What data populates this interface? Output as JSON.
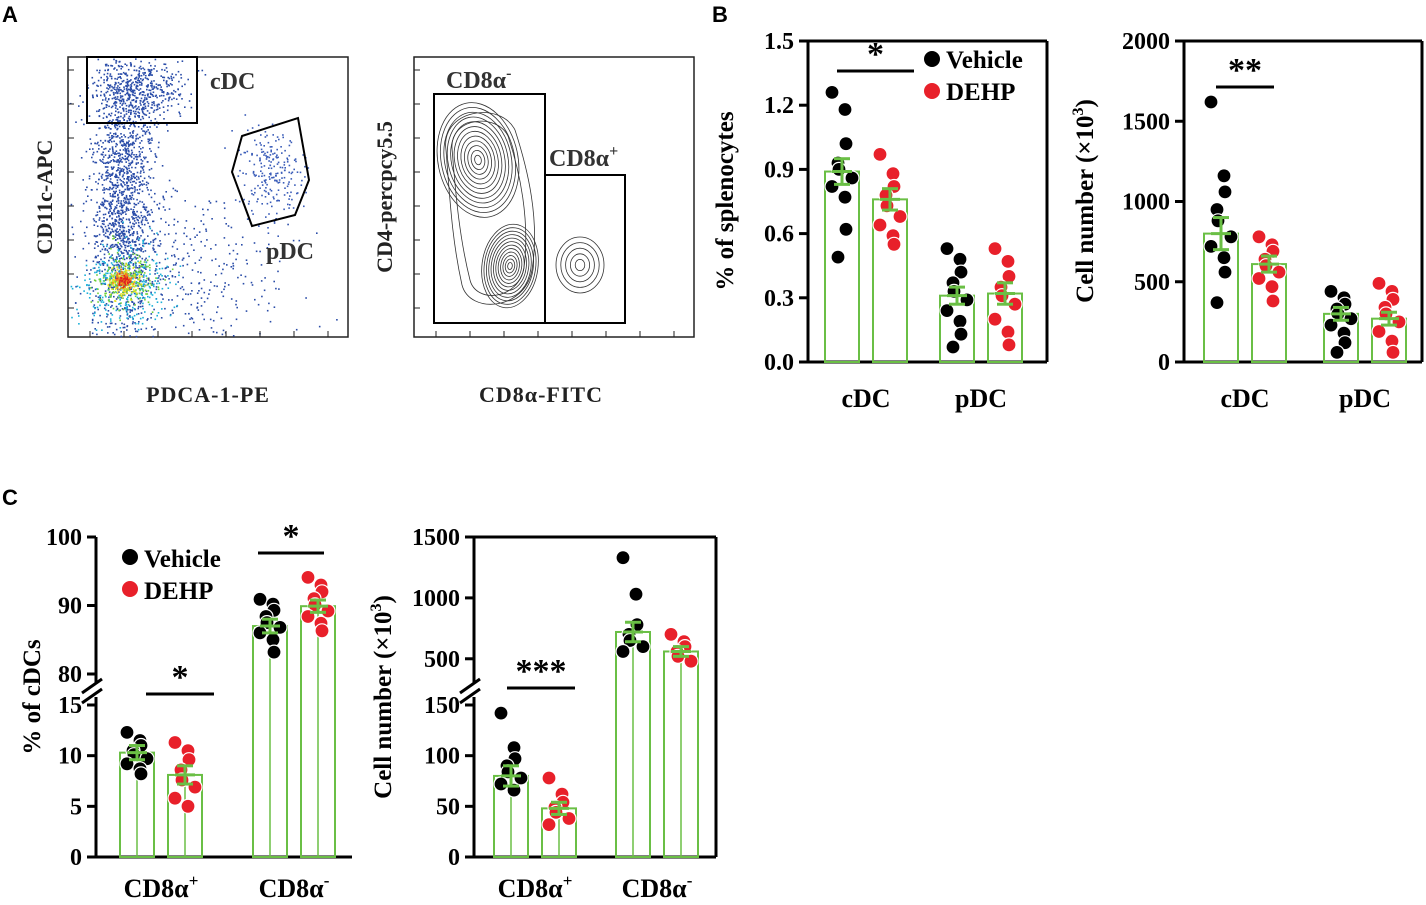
{
  "colors": {
    "bar": "#6abf45",
    "vehicle": "#000000",
    "dehp": "#e8202a",
    "flow_dots": "#2a4ca8",
    "contour": "#333333"
  },
  "panel_labels": {
    "a": "A",
    "b": "B",
    "c": "C"
  },
  "panel_a": {
    "dotplot": {
      "xlabel": "PDCA-1-PE",
      "ylabel": "CD11c-APC",
      "gate_cdc": "cDC",
      "gate_pdc": "pDC"
    },
    "contour": {
      "xlabel": "CD8α-FITC",
      "ylabel": "CD4-percpcy5.5",
      "gate_neg": "CD8α",
      "gate_neg_sup": "-",
      "gate_pos": "CD8α",
      "gate_pos_sup": "+"
    }
  },
  "legend": {
    "vehicle": "Vehicle",
    "dehp": "DEHP"
  },
  "chart_data": [
    {
      "id": "b1",
      "type": "bar",
      "title": "",
      "ylabel": "% of splenocytes",
      "categories": [
        "cDC",
        "pDC"
      ],
      "ylim": [
        0,
        1.5
      ],
      "yticks": [
        0.0,
        0.3,
        0.6,
        0.9,
        1.2,
        1.5
      ],
      "ytick_labels": [
        "0.0",
        "0.3",
        "0.6",
        "0.9",
        "1.2",
        "1.5"
      ],
      "series": [
        {
          "name": "Vehicle",
          "values": [
            0.89,
            0.31
          ],
          "sem": [
            0.06,
            0.04
          ],
          "points": [
            [
              1.26,
              1.18,
              1.02,
              0.93,
              0.9,
              0.86,
              0.82,
              0.77,
              0.62,
              0.49
            ],
            [
              0.53,
              0.48,
              0.42,
              0.37,
              0.33,
              0.29,
              0.24,
              0.19,
              0.13,
              0.07
            ]
          ]
        },
        {
          "name": "DEHP",
          "values": [
            0.76,
            0.32
          ],
          "sem": [
            0.05,
            0.05
          ],
          "points": [
            [
              0.97,
              0.88,
              0.82,
              0.78,
              0.73,
              0.68,
              0.64,
              0.59,
              0.55
            ],
            [
              0.53,
              0.47,
              0.4,
              0.35,
              0.31,
              0.27,
              0.2,
              0.14,
              0.08
            ]
          ]
        }
      ],
      "significance": [
        {
          "category": "cDC",
          "label": "*"
        }
      ]
    },
    {
      "id": "b2",
      "type": "bar",
      "title": "",
      "ylabel": "Cell number (×10",
      "ylabel_sup": "3",
      "ylabel_close": ")",
      "categories": [
        "cDC",
        "pDC"
      ],
      "ylim": [
        0,
        2000
      ],
      "yticks": [
        0,
        500,
        1000,
        1500,
        2000
      ],
      "ytick_labels": [
        "0",
        "500",
        "1000",
        "1500",
        "2000"
      ],
      "series": [
        {
          "name": "Vehicle",
          "values": [
            800,
            300
          ],
          "sem": [
            100,
            40
          ],
          "points": [
            [
              1620,
              1160,
              1060,
              950,
              880,
              780,
              720,
              650,
              560,
              370
            ],
            [
              440,
              400,
              360,
              330,
              300,
              270,
              230,
              180,
              120,
              60
            ]
          ]
        },
        {
          "name": "DEHP",
          "values": [
            610,
            270
          ],
          "sem": [
            50,
            40
          ],
          "points": [
            [
              780,
              730,
              690,
              640,
              600,
              560,
              520,
              470,
              380
            ],
            [
              490,
              440,
              390,
              340,
              300,
              250,
              190,
              130,
              60
            ]
          ]
        }
      ],
      "significance": [
        {
          "category": "cDC",
          "label": "**"
        }
      ]
    },
    {
      "id": "c1",
      "type": "bar",
      "title": "",
      "ylabel": "% of cDCs",
      "categories": [
        "CD8α",
        "CD8α"
      ],
      "category_sups": [
        "+",
        "-"
      ],
      "broken_axis": {
        "lower": [
          0,
          15
        ],
        "upper": [
          80,
          100
        ]
      },
      "yticks_lower": [
        0,
        5,
        10,
        15
      ],
      "yticks_upper": [
        80,
        90,
        100
      ],
      "ytick_labels_lower": [
        "0",
        "5",
        "10",
        "15"
      ],
      "ytick_labels_upper": [
        "80",
        "90",
        "100"
      ],
      "series": [
        {
          "name": "Vehicle",
          "values": [
            10.3,
            87.0
          ],
          "sem": [
            0.7,
            1.0
          ],
          "points": [
            [
              12.3,
              11.5,
              11.0,
              10.5,
              10.1,
              9.7,
              9.2,
              8.7,
              8.2
            ],
            [
              90.9,
              90.2,
              89.3,
              88.4,
              87.5,
              86.8,
              86.0,
              85.0,
              83.2
            ]
          ]
        },
        {
          "name": "DEHP",
          "values": [
            8.1,
            89.9
          ],
          "sem": [
            0.9,
            0.9
          ],
          "points": [
            [
              11.3,
              10.5,
              9.6,
              8.6,
              7.6,
              6.9,
              5.8,
              5.0
            ],
            [
              94.1,
              93.0,
              92.0,
              91.0,
              90.1,
              89.2,
              88.4,
              87.4,
              86.3
            ]
          ]
        }
      ],
      "significance": [
        {
          "category": "CD8α+",
          "label": "*"
        },
        {
          "category": "CD8α-",
          "label": "*"
        }
      ]
    },
    {
      "id": "c2",
      "type": "bar",
      "title": "",
      "ylabel": "Cell number (×10",
      "ylabel_sup": "3",
      "ylabel_close": ")",
      "categories": [
        "CD8α",
        "CD8α"
      ],
      "category_sups": [
        "+",
        "-"
      ],
      "broken_axis": {
        "lower": [
          0,
          150
        ],
        "upper": [
          375,
          1500
        ]
      },
      "yticks_lower": [
        0,
        50,
        100,
        150
      ],
      "yticks_upper": [
        500,
        1000,
        1500
      ],
      "ytick_labels_lower": [
        "0",
        "50",
        "100",
        "150"
      ],
      "ytick_labels_upper": [
        "500",
        "1000",
        "1500"
      ],
      "series": [
        {
          "name": "Vehicle",
          "values": [
            80,
            720
          ],
          "sem": [
            10,
            80
          ],
          "points": [
            [
              142,
              108,
              97,
              90,
              84,
              78,
              72,
              66
            ],
            [
              1330,
              1030,
              780,
              700,
              650,
              600,
              560
            ]
          ]
        },
        {
          "name": "DEHP",
          "values": [
            48,
            560
          ],
          "sem": [
            6,
            40
          ],
          "points": [
            [
              78,
              62,
              54,
              49,
              44,
              38,
              32
            ],
            [
              700,
              640,
              600,
              560,
              520,
              480
            ]
          ]
        }
      ],
      "significance": [
        {
          "category": "CD8α+",
          "label": "***"
        }
      ]
    }
  ]
}
